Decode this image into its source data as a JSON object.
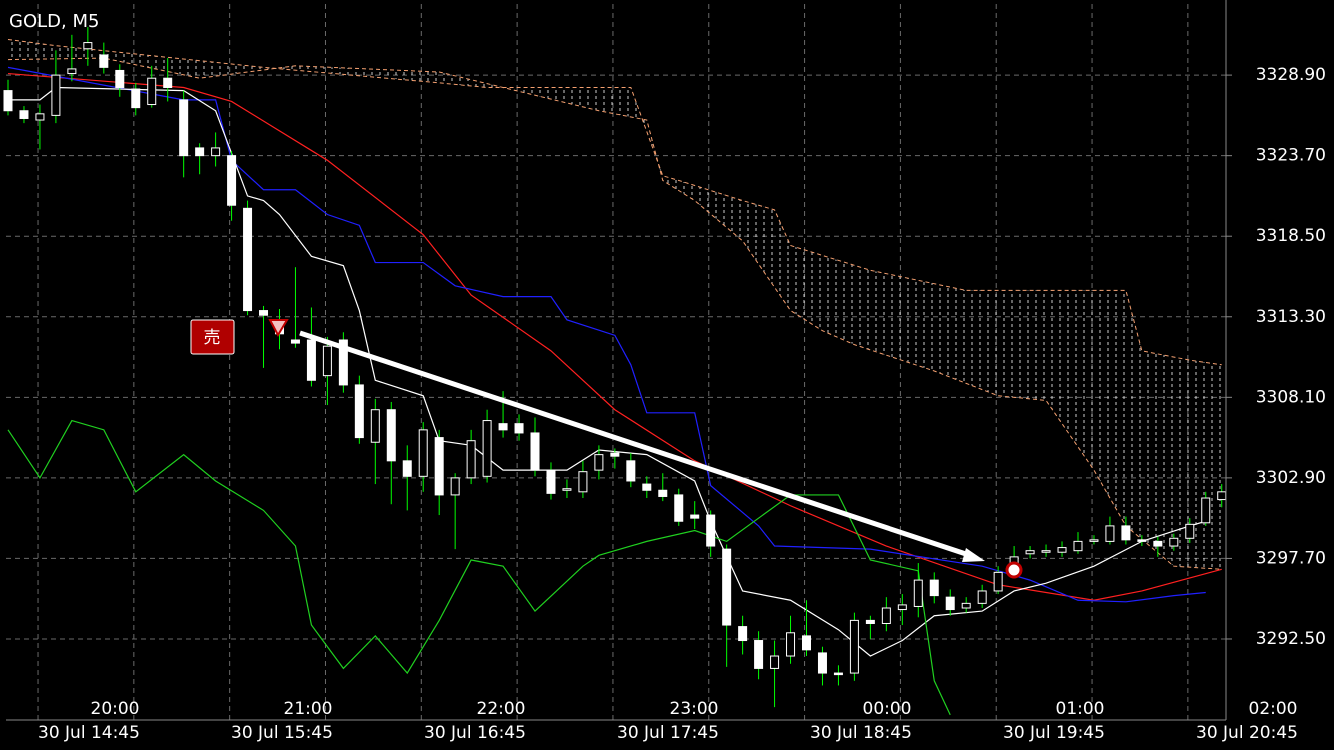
{
  "chart_data": {
    "type": "candlestick",
    "title": "GOLD, M5",
    "ylim": [
      3287.27,
      3333.49
    ],
    "yticks": [
      {
        "value": 3292.5,
        "label": "3292.50"
      },
      {
        "value": 3297.7,
        "label": "3297.70"
      },
      {
        "value": 3302.9,
        "label": "3302.90"
      },
      {
        "value": 3308.1,
        "label": "3308.10"
      },
      {
        "value": 3313.3,
        "label": "3313.30"
      },
      {
        "value": 3318.5,
        "label": "3318.50"
      },
      {
        "value": 3323.7,
        "label": "3323.70"
      },
      {
        "value": 3328.9,
        "label": "3328.90"
      }
    ],
    "grid": true,
    "time_labels_top": [
      "20:00",
      "21:00",
      "22:00",
      "23:00",
      "00:00",
      "01:00",
      "02:00"
    ],
    "time_labels_bottom": [
      "30 Jul 14:45",
      "30 Jul 15:45",
      "30 Jul 16:45",
      "30 Jul 17:45",
      "30 Jul 18:45",
      "30 Jul 19:45",
      "30 Jul 20:45"
    ],
    "annotation": "売",
    "bull_color": "#000000",
    "bear_color": "#ffffff",
    "wick_color": "#00ff00",
    "candles": [
      [
        3327.9,
        3328.6,
        3326.3,
        3326.6
      ],
      [
        3326.6,
        3326.9,
        3325.8,
        3326.1
      ],
      [
        3326.0,
        3327.0,
        3324.1,
        3326.4
      ],
      [
        3326.3,
        3330.5,
        3325.8,
        3328.9
      ],
      [
        3329.0,
        3331.5,
        3328.5,
        3329.3
      ],
      [
        3330.6,
        3332.0,
        3329.5,
        3331.0
      ],
      [
        3330.2,
        3331.0,
        3329.0,
        3329.4
      ],
      [
        3329.2,
        3329.6,
        3327.5,
        3328.1
      ],
      [
        3328.0,
        3328.4,
        3326.3,
        3326.8
      ],
      [
        3327.0,
        3329.5,
        3326.8,
        3328.7
      ],
      [
        3328.7,
        3330.0,
        3327.2,
        3328.1
      ],
      [
        3327.3,
        3327.9,
        3322.3,
        3323.7
      ],
      [
        3324.2,
        3324.5,
        3322.5,
        3323.7
      ],
      [
        3323.7,
        3325.2,
        3323.0,
        3324.2
      ],
      [
        3323.7,
        3324.0,
        3319.5,
        3320.5
      ],
      [
        3320.3,
        3320.8,
        3313.4,
        3313.7
      ],
      [
        3313.7,
        3314.0,
        3310.0,
        3313.4
      ],
      [
        3313.1,
        3313.8,
        3311.2,
        3312.2
      ],
      [
        3311.8,
        3316.5,
        3311.3,
        3311.6
      ],
      [
        3311.8,
        3313.9,
        3308.8,
        3309.2
      ],
      [
        3309.5,
        3312.0,
        3307.6,
        3311.4
      ],
      [
        3311.8,
        3312.3,
        3308.4,
        3308.9
      ],
      [
        3308.9,
        3309.5,
        3305.1,
        3305.5
      ],
      [
        3305.2,
        3308.0,
        3302.5,
        3307.3
      ],
      [
        3307.3,
        3307.8,
        3301.2,
        3304.0
      ],
      [
        3304.0,
        3305.0,
        3300.8,
        3303.0
      ],
      [
        3303.0,
        3306.5,
        3302.0,
        3306.0
      ],
      [
        3305.5,
        3306.0,
        3300.5,
        3301.8
      ],
      [
        3301.8,
        3303.2,
        3298.3,
        3302.9
      ],
      [
        3302.9,
        3306.0,
        3302.5,
        3305.3
      ],
      [
        3303.0,
        3307.3,
        3302.6,
        3306.6
      ],
      [
        3306.4,
        3308.5,
        3305.5,
        3306.0
      ],
      [
        3306.4,
        3307.0,
        3305.3,
        3305.8
      ],
      [
        3305.8,
        3306.8,
        3303.0,
        3303.4
      ],
      [
        3303.4,
        3303.9,
        3301.5,
        3301.9
      ],
      [
        3302.1,
        3302.8,
        3301.6,
        3302.2
      ],
      [
        3302.0,
        3304.0,
        3301.6,
        3303.3
      ],
      [
        3303.4,
        3305.0,
        3302.8,
        3304.4
      ],
      [
        3304.5,
        3304.8,
        3303.5,
        3304.3
      ],
      [
        3304.0,
        3304.5,
        3302.3,
        3302.7
      ],
      [
        3302.5,
        3303.0,
        3301.6,
        3302.1
      ],
      [
        3302.1,
        3303.2,
        3301.4,
        3301.7
      ],
      [
        3301.8,
        3302.2,
        3299.8,
        3300.1
      ],
      [
        3300.5,
        3301.4,
        3299.6,
        3300.3
      ],
      [
        3300.5,
        3300.8,
        3297.8,
        3298.5
      ],
      [
        3298.3,
        3298.6,
        3290.7,
        3293.4
      ],
      [
        3293.3,
        3294.0,
        3291.5,
        3292.4
      ],
      [
        3292.4,
        3293.0,
        3289.9,
        3290.6
      ],
      [
        3290.6,
        3292.4,
        3288.1,
        3291.4
      ],
      [
        3291.4,
        3294.0,
        3290.9,
        3292.9
      ],
      [
        3292.7,
        3295.0,
        3291.4,
        3291.8
      ],
      [
        3291.6,
        3292.0,
        3289.5,
        3290.3
      ],
      [
        3290.3,
        3290.8,
        3289.5,
        3290.2
      ],
      [
        3290.3,
        3294.2,
        3289.8,
        3293.7
      ],
      [
        3293.7,
        3294.0,
        3292.5,
        3293.5
      ],
      [
        3293.5,
        3295.2,
        3293.0,
        3294.5
      ],
      [
        3294.4,
        3295.4,
        3293.4,
        3294.7
      ],
      [
        3294.6,
        3297.4,
        3293.9,
        3296.3
      ],
      [
        3296.3,
        3296.8,
        3294.8,
        3295.3
      ],
      [
        3295.2,
        3295.7,
        3294.0,
        3294.4
      ],
      [
        3294.5,
        3295.2,
        3294.2,
        3294.8
      ],
      [
        3294.8,
        3296.0,
        3294.5,
        3295.6
      ],
      [
        3295.6,
        3297.2,
        3295.4,
        3296.8
      ],
      [
        3296.8,
        3298.5,
        3296.5,
        3297.8
      ],
      [
        3298.0,
        3298.5,
        3297.7,
        3298.2
      ],
      [
        3298.1,
        3298.6,
        3297.8,
        3298.2
      ],
      [
        3298.1,
        3298.8,
        3297.8,
        3298.4
      ],
      [
        3298.2,
        3299.4,
        3298.0,
        3298.8
      ],
      [
        3298.8,
        3299.2,
        3298.6,
        3298.9
      ],
      [
        3298.8,
        3300.4,
        3298.6,
        3299.8
      ],
      [
        3299.8,
        3300.4,
        3298.6,
        3298.9
      ],
      [
        3298.9,
        3299.2,
        3298.5,
        3298.8
      ],
      [
        3298.8,
        3299.1,
        3297.8,
        3298.5
      ],
      [
        3298.5,
        3299.3,
        3298.2,
        3299.0
      ],
      [
        3299.0,
        3300.3,
        3298.7,
        3299.9
      ],
      [
        3300.0,
        3302.0,
        3299.8,
        3301.6
      ],
      [
        3301.5,
        3302.5,
        3301.0,
        3302.0
      ]
    ],
    "series": [
      {
        "color": "#ff2020",
        "x": [
          0,
          11,
          14,
          20,
          26,
          29,
          34,
          38,
          43,
          49,
          55,
          62,
          68,
          71,
          76
        ],
        "values": [
          3329.0,
          3328.1,
          3327.2,
          3323.4,
          3318.6,
          3314.7,
          3311.1,
          3307.3,
          3304.0,
          3301.1,
          3298.5,
          3296.0,
          3295.0,
          3295.6,
          3297.0
        ]
      },
      {
        "color": "#2020ff",
        "x": [
          0,
          11,
          13,
          14,
          16,
          18,
          20,
          22,
          23,
          26,
          28,
          31,
          34,
          35,
          38,
          39,
          40,
          43,
          44,
          47,
          48,
          54,
          61,
          64,
          67,
          70,
          73,
          75
        ],
        "values": [
          3329.4,
          3327.3,
          3327.3,
          3323.4,
          3321.5,
          3321.5,
          3319.9,
          3319.2,
          3316.8,
          3316.8,
          3315.3,
          3314.6,
          3314.6,
          3313.1,
          3312.1,
          3310.2,
          3307.1,
          3307.1,
          3302.4,
          3299.8,
          3298.5,
          3298.3,
          3297.2,
          3296.3,
          3295.0,
          3294.9,
          3295.3,
          3295.5
        ]
      },
      {
        "color": "#ffffff",
        "x": [
          0,
          2,
          3,
          11,
          13,
          15,
          16,
          17,
          19,
          21,
          22,
          23,
          26,
          27,
          29,
          31,
          35,
          37,
          40,
          43,
          44,
          46,
          49,
          52,
          54,
          56,
          58,
          61,
          63,
          65,
          68,
          71,
          74,
          75
        ],
        "values": [
          3327.3,
          3327.3,
          3328.1,
          3327.9,
          3326.6,
          3321.1,
          3320.8,
          3319.9,
          3317.2,
          3316.6,
          3313.7,
          3309.2,
          3308.2,
          3305.3,
          3305.0,
          3303.4,
          3303.4,
          3304.7,
          3304.4,
          3302.7,
          3300.1,
          3295.6,
          3295.0,
          3293.1,
          3291.4,
          3292.4,
          3294.0,
          3294.3,
          3295.6,
          3296.1,
          3297.2,
          3298.8,
          3299.8,
          3300.1
        ]
      },
      {
        "color": "#20d020",
        "x": [
          0,
          2,
          4,
          6,
          8,
          11,
          13,
          16,
          18,
          19,
          21,
          23,
          25,
          27,
          29,
          31,
          33,
          36,
          37,
          40,
          43,
          45,
          49,
          52,
          54,
          57,
          58,
          59
        ],
        "values": [
          3306.0,
          3302.9,
          3306.6,
          3306.0,
          3302.0,
          3304.4,
          3302.7,
          3300.8,
          3298.5,
          3293.4,
          3290.6,
          3292.7,
          3290.3,
          3293.7,
          3297.6,
          3297.2,
          3294.3,
          3297.2,
          3297.9,
          3298.8,
          3299.5,
          3298.8,
          3301.8,
          3301.8,
          3297.6,
          3296.9,
          3289.8,
          3287.6
        ]
      },
      {
        "color": "#f4a070",
        "dashed": true,
        "x": [
          0,
          3,
          16,
          27,
          30,
          39,
          41,
          42,
          46,
          48,
          49,
          54,
          60,
          70,
          71,
          74,
          76
        ],
        "values": [
          3331.2,
          3330.8,
          3329.4,
          3328.4,
          3328.1,
          3328.1,
          3322.4,
          3322.1,
          3320.8,
          3320.2,
          3317.9,
          3316.3,
          3315.0,
          3315.0,
          3311.1,
          3310.5,
          3310.2
        ]
      },
      {
        "color": "#f4a070",
        "dashed": true,
        "x": [
          0,
          6,
          12,
          18,
          27,
          37,
          40,
          41,
          43,
          46,
          49,
          51,
          53,
          58,
          62,
          65,
          68,
          70,
          73,
          76
        ],
        "values": [
          3329.9,
          3330.0,
          3328.7,
          3329.5,
          3329.1,
          3326.6,
          3326.0,
          3322.1,
          3320.8,
          3318.2,
          3313.7,
          3312.4,
          3311.5,
          3309.8,
          3308.2,
          3307.9,
          3303.4,
          3299.8,
          3297.2,
          3297.0
        ]
      }
    ]
  }
}
